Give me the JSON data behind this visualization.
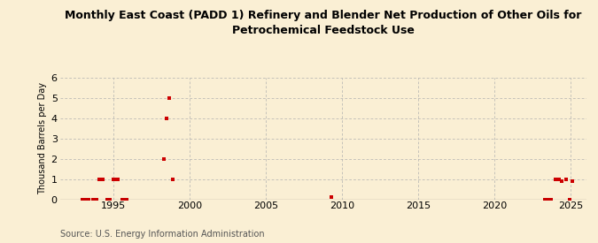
{
  "title": "Monthly East Coast (PADD 1) Refinery and Blender Net Production of Other Oils for\nPetrochemical Feedstock Use",
  "ylabel": "Thousand Barrels per Day",
  "source": "Source: U.S. Energy Information Administration",
  "background_color": "#faefd4",
  "marker_color": "#cc0000",
  "xlim": [
    1991.5,
    2026
  ],
  "ylim": [
    0,
    6
  ],
  "yticks": [
    0,
    1,
    2,
    3,
    4,
    5,
    6
  ],
  "xticks": [
    1995,
    2000,
    2005,
    2010,
    2015,
    2020,
    2025
  ],
  "data_x": [
    1993.0,
    1993.2,
    1993.4,
    1993.7,
    1993.9,
    1994.1,
    1994.3,
    1994.6,
    1994.8,
    1995.0,
    1995.1,
    1995.3,
    1995.6,
    1995.8,
    1995.9,
    1998.3,
    1998.5,
    1998.7,
    1998.9,
    2009.3,
    2023.3,
    2023.5,
    2023.7,
    2024.0,
    2024.2,
    2024.4,
    2024.7,
    2024.9,
    2025.1
  ],
  "data_y": [
    0.0,
    0.0,
    0.0,
    0.0,
    0.0,
    1.0,
    1.0,
    0.0,
    0.0,
    1.0,
    1.0,
    1.0,
    0.0,
    0.0,
    0.0,
    2.0,
    4.0,
    5.0,
    1.0,
    0.1,
    0.0,
    0.0,
    0.0,
    1.0,
    1.0,
    0.9,
    1.0,
    0.0,
    0.9
  ],
  "title_fontsize": 9,
  "ylabel_fontsize": 7,
  "tick_fontsize": 8,
  "source_fontsize": 7
}
